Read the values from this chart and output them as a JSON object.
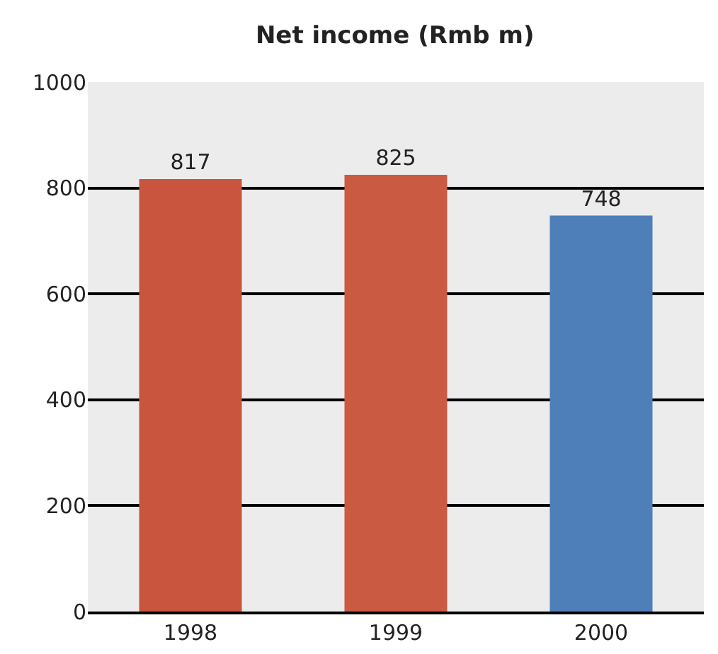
{
  "chart_data": {
    "type": "bar",
    "title": "Net income (Rmb m)",
    "categories": [
      "1998",
      "1999",
      "2000"
    ],
    "values": [
      817,
      825,
      748
    ],
    "colors": [
      "#c9553f",
      "#ca5a42",
      "#4f7fb8"
    ],
    "ylim": [
      0,
      1000
    ],
    "yticks": [
      0,
      200,
      400,
      600,
      800,
      1000
    ],
    "grid": "y",
    "data_labels": true
  }
}
